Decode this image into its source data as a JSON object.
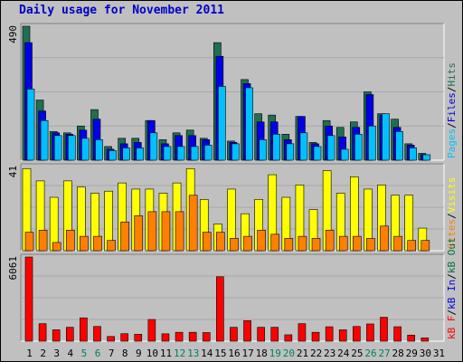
{
  "title": "Daily usage for November 2011",
  "colors": {
    "hits": "#1f6f50",
    "files": "#0000e6",
    "pages": "#00c0ff",
    "visits": "#ffff00",
    "sites": "#ff8000",
    "kbin": "#0000e6",
    "kbout": "#007040",
    "kbf": "#ff0000",
    "weekend_day": "#007f5f",
    "weekday": "#000000",
    "panel_bg": "#c0c0c0"
  },
  "chart_data": [
    {
      "type": "bar",
      "panel": "top",
      "max_label": "490",
      "ymax": 490,
      "right_labels": [
        {
          "text": "Pages",
          "color": "#00c0ff"
        },
        {
          "text": "/",
          "color": "#000000"
        },
        {
          "text": "Files",
          "color": "#0000e6"
        },
        {
          "text": "/",
          "color": "#000000"
        },
        {
          "text": "Hits",
          "color": "#1f6f50"
        }
      ],
      "categories": [
        "1",
        "2",
        "3",
        "4",
        "5",
        "6",
        "7",
        "8",
        "9",
        "10",
        "11",
        "12",
        "13",
        "14",
        "15",
        "16",
        "17",
        "18",
        "19",
        "20",
        "21",
        "22",
        "23",
        "24",
        "25",
        "26",
        "27",
        "28",
        "29",
        "30",
        "31"
      ],
      "weekend": [
        false,
        false,
        false,
        false,
        true,
        true,
        false,
        false,
        false,
        false,
        false,
        true,
        true,
        false,
        false,
        false,
        false,
        false,
        true,
        true,
        false,
        false,
        false,
        false,
        false,
        true,
        true,
        false,
        false,
        false,
        false
      ],
      "series": [
        {
          "name": "Hits",
          "values": [
            490,
            220,
            105,
            100,
            125,
            185,
            50,
            80,
            80,
            145,
            75,
            100,
            110,
            80,
            430,
            70,
            295,
            170,
            165,
            95,
            160,
            65,
            145,
            120,
            140,
            250,
            170,
            150,
            60,
            25,
            0
          ]
        },
        {
          "name": "Files",
          "values": [
            430,
            180,
            100,
            95,
            110,
            150,
            40,
            60,
            65,
            145,
            60,
            90,
            90,
            75,
            380,
            65,
            280,
            140,
            140,
            75,
            160,
            60,
            125,
            85,
            120,
            240,
            165,
            120,
            55,
            20,
            0
          ]
        },
        {
          "name": "Pages",
          "values": [
            260,
            145,
            90,
            90,
            80,
            75,
            35,
            45,
            45,
            100,
            50,
            50,
            50,
            55,
            270,
            60,
            265,
            75,
            95,
            60,
            100,
            50,
            90,
            40,
            95,
            125,
            170,
            105,
            45,
            20,
            0
          ]
        }
      ]
    },
    {
      "type": "bar",
      "panel": "middle",
      "max_label": "41",
      "ymax": 41,
      "right_labels": [
        {
          "text": "Sites",
          "color": "#ff8000"
        },
        {
          "text": "/",
          "color": "#000000"
        },
        {
          "text": "Visits",
          "color": "#ffff00"
        }
      ],
      "categories": [
        "1",
        "2",
        "3",
        "4",
        "5",
        "6",
        "7",
        "8",
        "9",
        "10",
        "11",
        "12",
        "13",
        "14",
        "15",
        "16",
        "17",
        "18",
        "19",
        "20",
        "21",
        "22",
        "23",
        "24",
        "25",
        "26",
        "27",
        "28",
        "29",
        "30",
        "31"
      ],
      "series": [
        {
          "name": "Visits",
          "values": [
            40,
            34,
            26,
            34,
            31,
            28,
            29,
            33,
            30,
            30,
            28,
            33,
            40,
            25,
            13,
            30,
            18,
            25,
            37,
            26,
            32,
            20,
            39,
            28,
            36,
            30,
            32,
            27,
            27,
            11,
            0
          ]
        },
        {
          "name": "Sites",
          "values": [
            9,
            10,
            4,
            10,
            7,
            7,
            5,
            14,
            17,
            19,
            19,
            19,
            27,
            9,
            9,
            6,
            7,
            10,
            8,
            6,
            7,
            6,
            10,
            7,
            7,
            6,
            12,
            7,
            5,
            5,
            0
          ]
        }
      ]
    },
    {
      "type": "bar",
      "panel": "bottom",
      "max_label": "6061",
      "ymax": 6061,
      "right_labels": [
        {
          "text": "kB F",
          "color": "#ff0000"
        },
        {
          "text": "/",
          "color": "#000000"
        },
        {
          "text": "kB In",
          "color": "#0000e6"
        },
        {
          "text": "/",
          "color": "#000000"
        },
        {
          "text": "kB Out",
          "color": "#007040"
        }
      ],
      "categories": [
        "1",
        "2",
        "3",
        "4",
        "5",
        "6",
        "7",
        "8",
        "9",
        "10",
        "11",
        "12",
        "13",
        "14",
        "15",
        "16",
        "17",
        "18",
        "19",
        "20",
        "21",
        "22",
        "23",
        "24",
        "25",
        "26",
        "27",
        "28",
        "29",
        "30",
        "31"
      ],
      "series": [
        {
          "name": "kB F",
          "values": [
            6061,
            1260,
            820,
            1000,
            1680,
            1060,
            340,
            540,
            500,
            1560,
            530,
            640,
            640,
            620,
            4640,
            1000,
            1480,
            1000,
            1000,
            460,
            1260,
            640,
            1040,
            820,
            1060,
            1240,
            1720,
            1040,
            440,
            240,
            0
          ]
        }
      ]
    }
  ]
}
